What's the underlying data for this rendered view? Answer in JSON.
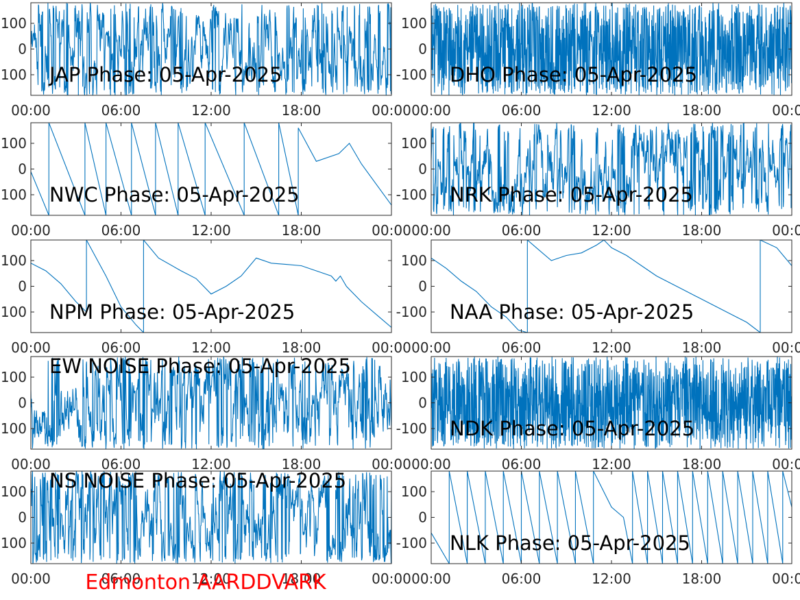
{
  "figure": {
    "footer_text": "Edmonton AARDDVARK",
    "footer_color": "#ff0000",
    "line_color": "#0072bd",
    "axes_color": "#262626"
  },
  "chart_data": [
    {
      "type": "line",
      "title": "JAP Phase: 05-Apr-2025",
      "ylim": [
        -180,
        180
      ],
      "yticks": [
        -100,
        0,
        100
      ],
      "ytick_labels": [
        "-100",
        "0",
        "100"
      ],
      "xlim": [
        0,
        24
      ],
      "xticks": [
        0,
        6,
        12,
        18,
        24
      ],
      "xtick_labels": [
        "00:00",
        "06:00",
        "12:00",
        "18:00",
        "00:00"
      ],
      "xlabel": "",
      "ylabel": "",
      "series": [
        {
          "pattern": "noise",
          "wraps": true
        }
      ]
    },
    {
      "type": "line",
      "title": "DHO Phase: 05-Apr-2025",
      "ylim": [
        -180,
        180
      ],
      "yticks": [
        -100,
        0,
        100
      ],
      "ytick_labels": [
        "-100",
        "0",
        "100"
      ],
      "xlim": [
        0,
        24
      ],
      "xticks": [
        0,
        6,
        12,
        18,
        24
      ],
      "xtick_labels": [
        "00:00",
        "06:00",
        "12:00",
        "18:00",
        "00:00"
      ],
      "xlabel": "",
      "ylabel": "",
      "series": [
        {
          "pattern": "dense-wrap",
          "wraps": true
        }
      ]
    },
    {
      "type": "line",
      "title": "NWC Phase: 05-Apr-2025",
      "ylim": [
        -180,
        180
      ],
      "yticks": [
        -100,
        0,
        100
      ],
      "ytick_labels": [
        "-100",
        "0",
        "100"
      ],
      "xlim": [
        0,
        24
      ],
      "xticks": [
        0,
        6,
        12,
        18,
        24
      ],
      "xtick_labels": [
        "00:00",
        "06:00",
        "12:00",
        "18:00",
        "00:00"
      ],
      "xlabel": "",
      "ylabel": "",
      "series": [
        {
          "x": [
            0,
            1.2,
            1.2,
            3.6,
            3.6,
            5.0,
            5.0,
            6.7,
            6.7,
            8.3,
            8.3,
            9.8,
            9.8,
            11.6,
            11.6,
            14.2,
            14.2,
            16.5,
            16.5,
            17.8,
            17.8,
            19.0,
            20.5,
            21.2,
            22.0,
            24.0
          ],
          "y": [
            -10,
            -180,
            180,
            -180,
            180,
            -180,
            180,
            -180,
            180,
            -180,
            180,
            -180,
            180,
            -180,
            180,
            -180,
            180,
            -180,
            180,
            -180,
            160,
            30,
            60,
            100,
            20,
            -140
          ],
          "wraps": true
        }
      ]
    },
    {
      "type": "line",
      "title": "NRK Phase: 05-Apr-2025",
      "ylim": [
        -180,
        180
      ],
      "yticks": [
        -100,
        0,
        100
      ],
      "ytick_labels": [
        "-100",
        "0",
        "100"
      ],
      "xlim": [
        0,
        24
      ],
      "xticks": [
        0,
        6,
        12,
        18,
        24
      ],
      "xtick_labels": [
        "00:00",
        "06:00",
        "12:00",
        "18:00",
        "00:00"
      ],
      "xlabel": "",
      "ylabel": "",
      "series": [
        {
          "pattern": "noise",
          "wraps": true
        }
      ]
    },
    {
      "type": "line",
      "title": "NPM Phase: 05-Apr-2025",
      "ylim": [
        -180,
        180
      ],
      "yticks": [
        -100,
        0,
        100
      ],
      "ytick_labels": [
        "-100",
        "0",
        "100"
      ],
      "xlim": [
        0,
        24
      ],
      "xticks": [
        0,
        6,
        12,
        18,
        24
      ],
      "xtick_labels": [
        "00:00",
        "06:00",
        "12:00",
        "18:00",
        "00:00"
      ],
      "xlabel": "",
      "ylabel": "",
      "series": [
        {
          "x": [
            0,
            1,
            2,
            3,
            3.7,
            3.7,
            5,
            6,
            7,
            7.5,
            7.5,
            8.5,
            10,
            11,
            12,
            13,
            14,
            14.5,
            15,
            16,
            17,
            18,
            19,
            20,
            20.3,
            20.6,
            21,
            22,
            23,
            24
          ],
          "y": [
            90,
            60,
            10,
            -60,
            -100,
            180,
            40,
            -80,
            -150,
            -180,
            180,
            110,
            60,
            30,
            -30,
            0,
            40,
            75,
            110,
            90,
            85,
            80,
            60,
            40,
            20,
            40,
            0,
            -60,
            -110,
            -160
          ],
          "wraps": true
        }
      ]
    },
    {
      "type": "line",
      "title": "NAA Phase: 05-Apr-2025",
      "ylim": [
        -180,
        180
      ],
      "yticks": [
        -100,
        0,
        100
      ],
      "ytick_labels": [
        "-100",
        "0",
        "100"
      ],
      "xlim": [
        0,
        24
      ],
      "xticks": [
        0,
        6,
        12,
        18,
        24
      ],
      "xtick_labels": [
        "00:00",
        "06:00",
        "12:00",
        "18:00",
        "00:00"
      ],
      "xlabel": "",
      "ylabel": "",
      "series": [
        {
          "x": [
            0,
            1,
            2,
            3,
            4,
            5,
            5.8,
            6.4,
            6.4,
            7,
            8,
            9,
            10,
            11,
            11.5,
            12,
            13,
            14,
            15,
            16,
            17,
            18,
            19,
            20,
            21,
            21.9,
            21.9,
            23,
            24
          ],
          "y": [
            110,
            70,
            20,
            -20,
            -80,
            -120,
            -170,
            -180,
            180,
            150,
            100,
            120,
            130,
            160,
            180,
            150,
            120,
            80,
            40,
            10,
            -20,
            -50,
            -80,
            -110,
            -140,
            -180,
            180,
            150,
            80
          ],
          "wraps": true
        }
      ]
    },
    {
      "type": "line",
      "title": "EW NOISE Phase: 05-Apr-2025",
      "ylim": [
        -180,
        180
      ],
      "yticks": [
        -100,
        0,
        100
      ],
      "ytick_labels": [
        "-100",
        "0",
        "100"
      ],
      "xlim": [
        0,
        24
      ],
      "xticks": [
        0,
        6,
        12,
        18,
        24
      ],
      "xtick_labels": [
        "00:00",
        "06:00",
        "12:00",
        "18:00",
        "00:00"
      ],
      "xlabel": "",
      "ylabel": "",
      "series": [
        {
          "pattern": "noise",
          "wraps": true
        }
      ]
    },
    {
      "type": "line",
      "title": "NDK Phase: 05-Apr-2025",
      "ylim": [
        -180,
        180
      ],
      "yticks": [
        -100,
        0,
        100
      ],
      "ytick_labels": [
        "-100",
        "0",
        "100"
      ],
      "xlim": [
        0,
        24
      ],
      "xticks": [
        0,
        6,
        12,
        18,
        24
      ],
      "xtick_labels": [
        "00:00",
        "06:00",
        "12:00",
        "18:00",
        "00:00"
      ],
      "xlabel": "",
      "ylabel": "",
      "series": [
        {
          "pattern": "dense-wrap",
          "wraps": true
        }
      ]
    },
    {
      "type": "line",
      "title": "NS NOISE Phase: 05-Apr-2025",
      "ylim": [
        -180,
        180
      ],
      "yticks": [
        -100,
        0,
        100
      ],
      "ytick_labels": [
        "-100",
        "0",
        "100"
      ],
      "xlim": [
        0,
        24
      ],
      "xticks": [
        0,
        6,
        12,
        18,
        24
      ],
      "xtick_labels": [
        "00:00",
        "06:00",
        "12:00",
        "18:00",
        "00:00"
      ],
      "xlabel": "",
      "ylabel": "",
      "series": [
        {
          "pattern": "noise",
          "wraps": true
        }
      ]
    },
    {
      "type": "line",
      "title": "NLK Phase: 05-Apr-2025",
      "ylim": [
        -180,
        180
      ],
      "yticks": [
        -100,
        0,
        100
      ],
      "ytick_labels": [
        "-100",
        "0",
        "100"
      ],
      "xlim": [
        0,
        24
      ],
      "xticks": [
        0,
        6,
        12,
        18,
        24
      ],
      "xtick_labels": [
        "00:00",
        "06:00",
        "12:00",
        "18:00",
        "00:00"
      ],
      "xlabel": "",
      "ylabel": "",
      "series": [
        {
          "x": [
            0,
            1.2,
            1.2,
            2.4,
            2.4,
            3.6,
            3.6,
            4.8,
            4.8,
            6.0,
            6.0,
            7.2,
            7.2,
            8.4,
            8.4,
            9.6,
            9.6,
            10.8,
            10.8,
            12.0,
            12.8,
            13.4,
            13.4,
            14.4,
            14.4,
            15.4,
            15.4,
            16.4,
            16.4,
            17.4,
            17.4,
            18.4,
            18.4,
            19.4,
            19.4,
            20.4,
            20.4,
            21.4,
            21.4,
            22.4,
            22.4,
            23.4,
            23.4,
            24.0
          ],
          "y": [
            -60,
            -180,
            180,
            -180,
            180,
            -180,
            180,
            -180,
            180,
            -180,
            180,
            -180,
            180,
            -180,
            180,
            -180,
            180,
            -180,
            180,
            40,
            0,
            -180,
            180,
            -180,
            180,
            -180,
            180,
            -180,
            180,
            -180,
            180,
            -180,
            180,
            -180,
            180,
            -180,
            180,
            -180,
            180,
            -180,
            180,
            -180,
            180,
            40
          ],
          "wraps": true
        }
      ]
    }
  ]
}
